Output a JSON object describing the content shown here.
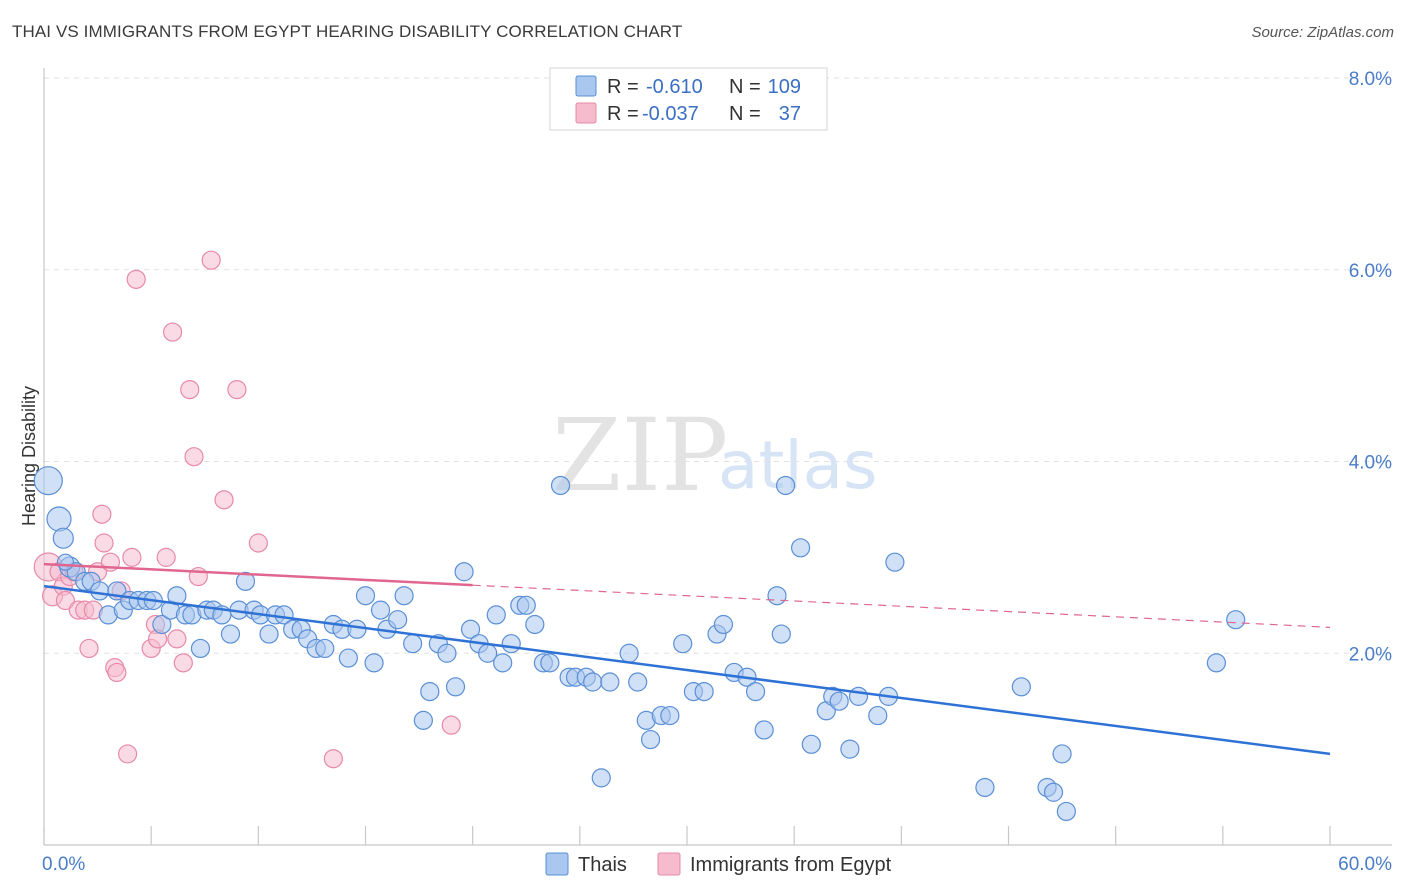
{
  "title": "THAI VS IMMIGRANTS FROM EGYPT HEARING DISABILITY CORRELATION CHART",
  "source": "Source: ZipAtlas.com",
  "watermark": {
    "zip": "ZIP",
    "atlas": "atlas"
  },
  "colors": {
    "thai_fill": "#a9c7ef",
    "thai_stroke": "#5b8fd6",
    "thai_line": "#2f72d6",
    "egypt_fill": "#f6bccd",
    "egypt_stroke": "#e78aa8",
    "egypt_line": "#e06690",
    "grid": "#e1e1e1",
    "axis_label": "#4a7cc9"
  },
  "legend": {
    "rows": [
      {
        "r_label": "R =",
        "r_value": "-0.610",
        "n_label": "N =",
        "n_value": "109"
      },
      {
        "r_label": "R =",
        "r_value": "-0.037",
        "n_label": "N =",
        "n_value": "37"
      }
    ]
  },
  "bottom_legend": [
    "Thais",
    "Immigrants from Egypt"
  ],
  "chart_data": {
    "type": "scatter",
    "title": "THAI VS IMMIGRANTS FROM EGYPT HEARING DISABILITY CORRELATION CHART",
    "xlabel": "",
    "ylabel": "Hearing Disability",
    "xlim": [
      0,
      60
    ],
    "ylim": [
      0,
      8
    ],
    "x_tick_labels": [
      "0.0%",
      "60.0%"
    ],
    "y_ticks": [
      2,
      4,
      6,
      8
    ],
    "y_tick_labels": [
      "2.0%",
      "4.0%",
      "6.0%",
      "8.0%"
    ],
    "grid": true,
    "legend_position": "top-center",
    "series": [
      {
        "name": "Thais",
        "r": -0.61,
        "n": 109,
        "trend": {
          "x": [
            0,
            60
          ],
          "y": [
            2.7,
            0.95
          ],
          "dashed_from": null
        },
        "points": [
          [
            0.2,
            3.8,
            14
          ],
          [
            0.7,
            3.4,
            12
          ],
          [
            0.9,
            3.2,
            10
          ],
          [
            1.2,
            2.9,
            10
          ],
          [
            1.5,
            2.85,
            9
          ],
          [
            1.9,
            2.75,
            9
          ],
          [
            2.2,
            2.75,
            9
          ],
          [
            2.6,
            2.65,
            9
          ],
          [
            3.0,
            2.4,
            9
          ],
          [
            3.4,
            2.65,
            9
          ],
          [
            3.7,
            2.45,
            9
          ],
          [
            4.0,
            2.55,
            9
          ],
          [
            4.4,
            2.55,
            9
          ],
          [
            4.8,
            2.55,
            9
          ],
          [
            5.1,
            2.55,
            9
          ],
          [
            5.5,
            2.3,
            9
          ],
          [
            5.9,
            2.45,
            9
          ],
          [
            6.2,
            2.6,
            9
          ],
          [
            6.6,
            2.4,
            9
          ],
          [
            6.9,
            2.4,
            9
          ],
          [
            7.3,
            2.05,
            9
          ],
          [
            7.6,
            2.45,
            9
          ],
          [
            7.9,
            2.45,
            9
          ],
          [
            8.3,
            2.4,
            9
          ],
          [
            8.7,
            2.2,
            9
          ],
          [
            9.1,
            2.45,
            9
          ],
          [
            9.4,
            2.75,
            9
          ],
          [
            9.8,
            2.45,
            9
          ],
          [
            10.1,
            2.4,
            9
          ],
          [
            10.5,
            2.2,
            9
          ],
          [
            10.8,
            2.4,
            9
          ],
          [
            11.2,
            2.4,
            9
          ],
          [
            11.6,
            2.25,
            9
          ],
          [
            12.0,
            2.25,
            9
          ],
          [
            12.3,
            2.15,
            9
          ],
          [
            12.7,
            2.05,
            9
          ],
          [
            13.1,
            2.05,
            9
          ],
          [
            13.5,
            2.3,
            9
          ],
          [
            13.9,
            2.25,
            9
          ],
          [
            14.2,
            1.95,
            9
          ],
          [
            14.6,
            2.25,
            9
          ],
          [
            15.0,
            2.6,
            9
          ],
          [
            15.4,
            1.9,
            9
          ],
          [
            15.7,
            2.45,
            9
          ],
          [
            16.0,
            2.25,
            9
          ],
          [
            16.5,
            2.35,
            9
          ],
          [
            16.8,
            2.6,
            9
          ],
          [
            17.2,
            2.1,
            9
          ],
          [
            17.7,
            1.3,
            9
          ],
          [
            18.0,
            1.6,
            9
          ],
          [
            18.4,
            2.1,
            9
          ],
          [
            18.8,
            2.0,
            9
          ],
          [
            19.2,
            1.65,
            9
          ],
          [
            19.6,
            2.85,
            9
          ],
          [
            19.9,
            2.25,
            9
          ],
          [
            20.3,
            2.1,
            9
          ],
          [
            20.7,
            2.0,
            9
          ],
          [
            21.1,
            2.4,
            9
          ],
          [
            21.4,
            1.9,
            9
          ],
          [
            21.8,
            2.1,
            9
          ],
          [
            22.2,
            2.5,
            9
          ],
          [
            22.5,
            2.5,
            9
          ],
          [
            22.9,
            2.3,
            9
          ],
          [
            23.3,
            1.9,
            9
          ],
          [
            23.6,
            1.9,
            9
          ],
          [
            24.1,
            3.75,
            9
          ],
          [
            24.5,
            1.75,
            9
          ],
          [
            24.8,
            1.75,
            9
          ],
          [
            25.3,
            1.75,
            9
          ],
          [
            25.6,
            1.7,
            9
          ],
          [
            26.0,
            0.7,
            9
          ],
          [
            26.4,
            1.7,
            9
          ],
          [
            27.3,
            2.0,
            9
          ],
          [
            27.7,
            1.7,
            9
          ],
          [
            28.1,
            1.3,
            9
          ],
          [
            28.3,
            1.1,
            9
          ],
          [
            28.8,
            1.35,
            9
          ],
          [
            29.2,
            1.35,
            9
          ],
          [
            29.8,
            2.1,
            9
          ],
          [
            30.3,
            1.6,
            9
          ],
          [
            30.8,
            1.6,
            9
          ],
          [
            31.4,
            2.2,
            9
          ],
          [
            31.7,
            2.3,
            9
          ],
          [
            32.2,
            1.8,
            9
          ],
          [
            32.8,
            1.75,
            9
          ],
          [
            33.2,
            1.6,
            9
          ],
          [
            33.6,
            1.2,
            9
          ],
          [
            34.2,
            2.6,
            9
          ],
          [
            34.4,
            2.2,
            9
          ],
          [
            34.6,
            3.75,
            9
          ],
          [
            35.3,
            3.1,
            9
          ],
          [
            35.8,
            1.05,
            9
          ],
          [
            36.5,
            1.4,
            9
          ],
          [
            36.8,
            1.55,
            9
          ],
          [
            37.1,
            1.5,
            9
          ],
          [
            37.6,
            1.0,
            9
          ],
          [
            38.0,
            1.55,
            9
          ],
          [
            38.9,
            1.35,
            9
          ],
          [
            39.4,
            1.55,
            9
          ],
          [
            39.7,
            2.95,
            9
          ],
          [
            43.9,
            0.6,
            9
          ],
          [
            45.6,
            1.65,
            9
          ],
          [
            46.8,
            0.6,
            9
          ],
          [
            47.1,
            0.55,
            9
          ],
          [
            47.5,
            0.95,
            9
          ],
          [
            47.7,
            0.35,
            9
          ],
          [
            54.7,
            1.9,
            9
          ],
          [
            55.6,
            2.35,
            9
          ],
          [
            1.0,
            2.95,
            8
          ]
        ]
      },
      {
        "name": "Immigrants from Egypt",
        "r": -0.037,
        "n": 37,
        "trend": {
          "x": [
            0,
            60
          ],
          "y": [
            2.93,
            2.27
          ],
          "dashed_from": 20
        },
        "points": [
          [
            0.2,
            2.9,
            14
          ],
          [
            0.4,
            2.6,
            10
          ],
          [
            0.7,
            2.85,
            9
          ],
          [
            0.9,
            2.7,
            9
          ],
          [
            1.0,
            2.55,
            9
          ],
          [
            1.2,
            2.8,
            9
          ],
          [
            1.4,
            2.85,
            9
          ],
          [
            1.6,
            2.45,
            9
          ],
          [
            1.9,
            2.45,
            9
          ],
          [
            2.1,
            2.05,
            9
          ],
          [
            2.3,
            2.45,
            9
          ],
          [
            2.5,
            2.85,
            9
          ],
          [
            2.7,
            3.45,
            9
          ],
          [
            2.8,
            3.15,
            9
          ],
          [
            3.1,
            2.95,
            9
          ],
          [
            3.3,
            1.85,
            9
          ],
          [
            3.4,
            1.8,
            9
          ],
          [
            3.6,
            2.65,
            9
          ],
          [
            3.9,
            0.95,
            9
          ],
          [
            4.1,
            3.0,
            9
          ],
          [
            4.3,
            5.9,
            9
          ],
          [
            5.0,
            2.05,
            9
          ],
          [
            5.2,
            2.3,
            9
          ],
          [
            5.3,
            2.15,
            9
          ],
          [
            5.7,
            3.0,
            9
          ],
          [
            6.0,
            5.35,
            9
          ],
          [
            6.2,
            2.15,
            9
          ],
          [
            6.5,
            1.9,
            9
          ],
          [
            6.8,
            4.75,
            9
          ],
          [
            7.0,
            4.05,
            9
          ],
          [
            7.2,
            2.8,
            9
          ],
          [
            7.8,
            6.1,
            9
          ],
          [
            8.4,
            3.6,
            9
          ],
          [
            9.0,
            4.75,
            9
          ],
          [
            10.0,
            3.15,
            9
          ],
          [
            13.5,
            0.9,
            9
          ],
          [
            19.0,
            1.25,
            9
          ]
        ]
      }
    ]
  }
}
